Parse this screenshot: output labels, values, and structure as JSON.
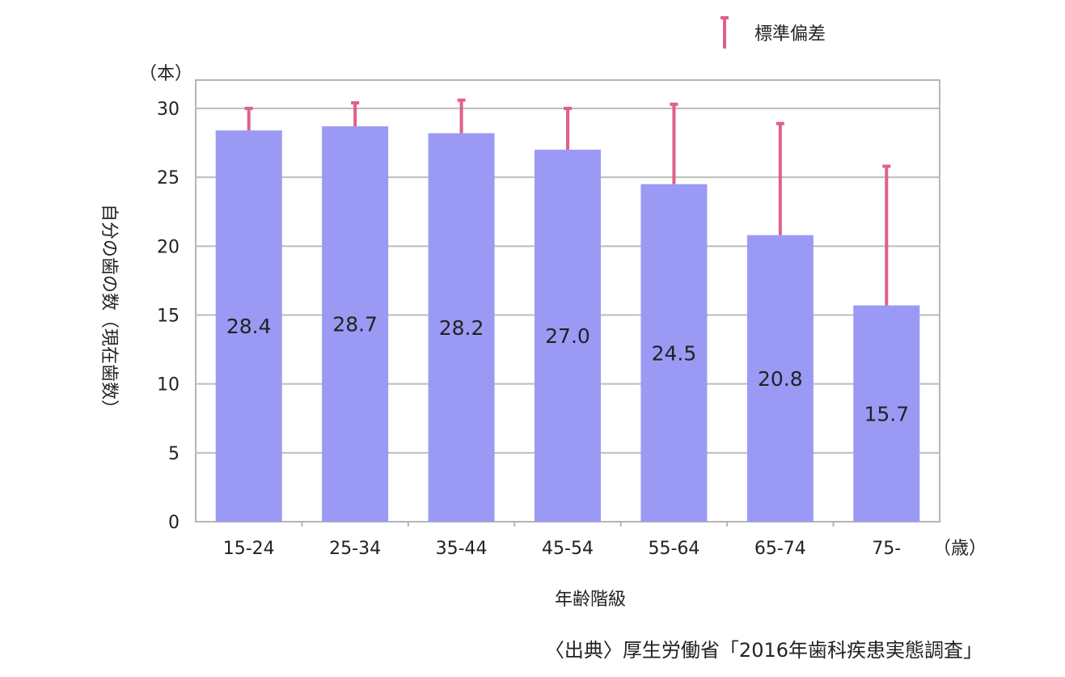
{
  "chart_data": {
    "type": "bar",
    "y_unit": "（本）",
    "x_unit": "（歳）",
    "ylabel": "自分の歯の数（現在歯数）",
    "xlabel": "年齢階級",
    "legend": {
      "label": "標準偏差",
      "color": "#e0608a",
      "position": "top-right"
    },
    "ylim": [
      0,
      30
    ],
    "yticks": [
      "0",
      "5",
      "10",
      "15",
      "20",
      "25",
      "30"
    ],
    "categories": [
      "15-24",
      "25-34",
      "35-44",
      "45-54",
      "55-64",
      "65-74",
      "75-"
    ],
    "series": [
      {
        "values": [
          28.4,
          28.7,
          28.2,
          27.0,
          24.5,
          20.8,
          15.7
        ],
        "labels": [
          "28.4",
          "28.7",
          "28.2",
          "27.0",
          "24.5",
          "20.8",
          "15.7"
        ],
        "error_upper": [
          30.0,
          30.4,
          30.6,
          30.0,
          30.3,
          28.9,
          25.8
        ],
        "color": "#9a9af5"
      }
    ],
    "grid": true,
    "source": "〈出典〉厚生労働省「2016年歯科疾患実態調査」"
  }
}
